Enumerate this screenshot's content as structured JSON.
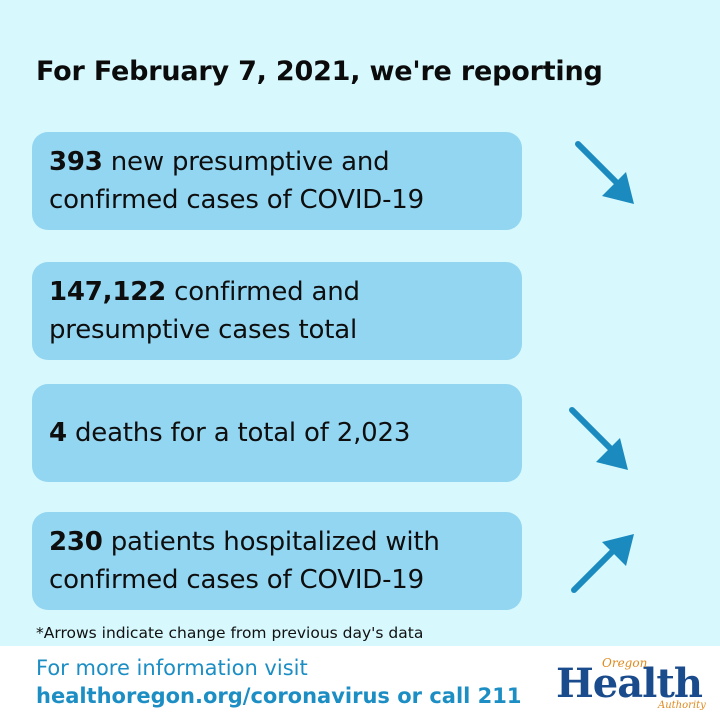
{
  "title": "For February 7, 2021, we're reporting",
  "cards": [
    {
      "number": "393",
      "text": " new presumptive and confirmed cases of COVID-19",
      "trend": "down"
    },
    {
      "number": "147,122",
      "text": " confirmed and presumptive cases total",
      "trend": "none"
    },
    {
      "number": "4",
      "text": " deaths for a total of 2,023",
      "trend": "down"
    },
    {
      "number": "230",
      "text": " patients hospitalized with confirmed cases of COVID-19",
      "trend": "up"
    }
  ],
  "note": "*Arrows indicate change from previous day's data",
  "footer": {
    "line1": "For more information visit",
    "line2": "healthoregon.org/coronavirus or call 211"
  },
  "logo": {
    "oregon": "Oregon",
    "health": "Health",
    "authority": "Authority"
  },
  "colors": {
    "background": "#d7f8fd",
    "card": "#93d6f2",
    "arrow": "#1b8bbf",
    "footer_text": "#1c8ec4"
  }
}
